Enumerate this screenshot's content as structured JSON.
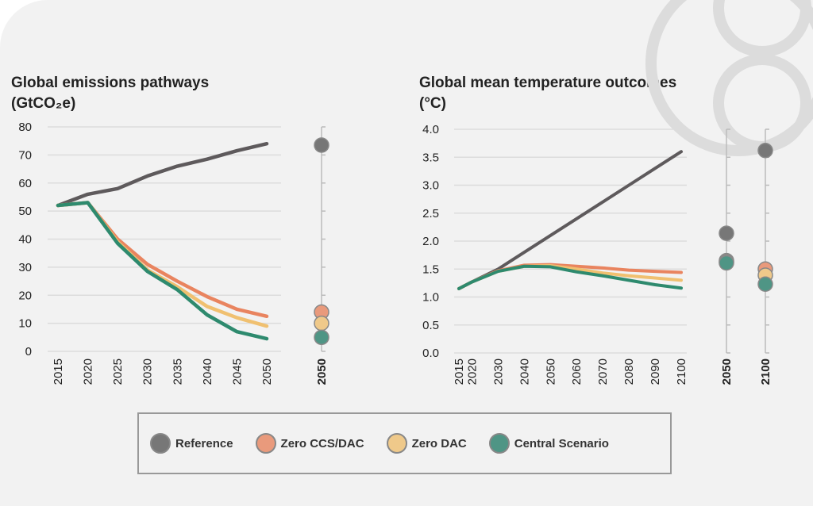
{
  "chart_data": [
    {
      "type": "line",
      "title": "Global emissions pathways",
      "unit": "(GtCO₂e)",
      "x": [
        2015,
        2020,
        2025,
        2030,
        2035,
        2040,
        2045,
        2050
      ],
      "ylim": [
        0,
        80
      ],
      "yticks": [
        0,
        10,
        20,
        30,
        40,
        50,
        60,
        70,
        80
      ],
      "series": [
        {
          "name": "Reference",
          "values": [
            52,
            56,
            58,
            62.5,
            66,
            68.5,
            71.5,
            74
          ]
        },
        {
          "name": "Zero CCS/DAC",
          "values": [
            52,
            53,
            40,
            31,
            25,
            19.5,
            15,
            12.5
          ]
        },
        {
          "name": "Zero DAC",
          "values": [
            52,
            53,
            39,
            29,
            23,
            16,
            12,
            9
          ]
        },
        {
          "name": "Central Scenario",
          "values": [
            52,
            53,
            38.5,
            28.5,
            22,
            13,
            7,
            4.5
          ]
        }
      ],
      "side_points": {
        "label": "2050",
        "values": [
          73.5,
          14,
          10,
          5
        ]
      }
    },
    {
      "type": "line",
      "title": "Global mean temperature outcomes",
      "unit": "(°C)",
      "x": [
        2015,
        2020,
        2030,
        2040,
        2050,
        2060,
        2070,
        2080,
        2090,
        2100
      ],
      "ylim": [
        0,
        4
      ],
      "yticks": [
        "0.0",
        "0.5",
        "1.0",
        "1.5",
        "2.0",
        "2.5",
        "3.0",
        "3.5",
        "4.0"
      ],
      "series": [
        {
          "name": "Reference",
          "values": [
            1.15,
            1.27,
            1.5,
            1.8,
            2.1,
            2.4,
            2.7,
            3.0,
            3.3,
            3.6
          ]
        },
        {
          "name": "Zero CCS/DAC",
          "values": [
            1.15,
            1.27,
            1.47,
            1.57,
            1.58,
            1.55,
            1.52,
            1.48,
            1.46,
            1.44
          ]
        },
        {
          "name": "Zero DAC",
          "values": [
            1.15,
            1.27,
            1.46,
            1.55,
            1.56,
            1.5,
            1.43,
            1.38,
            1.34,
            1.3
          ]
        },
        {
          "name": "Central Scenario",
          "values": [
            1.15,
            1.27,
            1.46,
            1.55,
            1.54,
            1.45,
            1.38,
            1.3,
            1.22,
            1.16
          ]
        }
      ],
      "side_points": [
        {
          "label": "2050",
          "values": [
            2.14,
            1.65,
            1.63,
            1.61
          ]
        },
        {
          "label": "2100",
          "values": [
            3.62,
            1.5,
            1.39,
            1.23
          ]
        }
      ]
    }
  ],
  "colors": {
    "Reference": "#5e5a5c",
    "Zero CCS/DAC": "#e9845f",
    "Zero DAC": "#f0c070",
    "Central Scenario": "#2e8a6e"
  },
  "dot_colors": [
    "#777777",
    "#e99a7c",
    "#efc98a",
    "#4f9585"
  ],
  "legend": [
    "Reference",
    "Zero CCS/DAC",
    "Zero DAC",
    "Central Scenario"
  ]
}
